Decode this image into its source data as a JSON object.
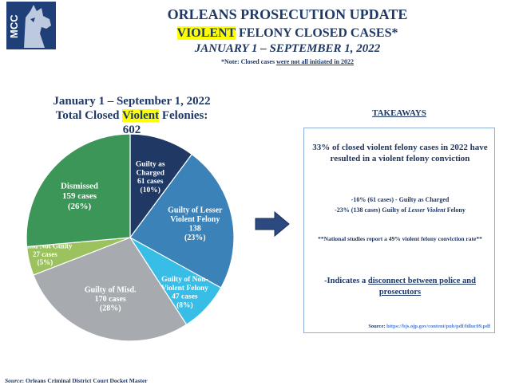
{
  "logo": {
    "text": "MCC"
  },
  "header": {
    "title": "ORLEANS PROSECUTION UPDATE",
    "subtitle_highlight": "VIOLENT",
    "subtitle_rest": " FELONY CLOSED CASES*",
    "daterange": "JANUARY 1 – SEPTEMBER 1, 2022",
    "note_prefix": "*Note: Closed cases ",
    "note_underlined": "were not all initiated in 2022"
  },
  "chart_heading": {
    "line1": "January 1 – September 1, 2022",
    "line2_pre": "Total Closed ",
    "line2_highlight": "Violent",
    "line2_post": " Felonies:",
    "total": "602"
  },
  "chart_data": {
    "type": "pie",
    "total": 602,
    "slices": [
      {
        "label": "Guilty as Charged",
        "cases": 61,
        "percent": "10%",
        "color": "#1f3864",
        "lines": [
          "Guilty as",
          "Charged",
          "61 cases",
          "(10%)"
        ]
      },
      {
        "label": "Guilty of Lesser Violent Felony",
        "cases": 138,
        "percent": "23%",
        "color": "#3b82b8",
        "lines": [
          "Guilty of Lesser",
          "Violent Felony",
          "138",
          "(23%)"
        ]
      },
      {
        "label": "Guilty of Non-Violent Felony",
        "cases": 47,
        "percent": "8%",
        "color": "#38bde6",
        "lines": [
          "Guilty of Non-",
          "Violent Felony",
          "47 cases",
          "(8%)"
        ]
      },
      {
        "label": "Guilty of Misd.",
        "cases": 170,
        "percent": "28%",
        "color": "#a7abb0",
        "lines": [
          "Guilty of Misd.",
          "170 cases",
          "(28%)"
        ]
      },
      {
        "label": "Found Not Guilty",
        "cases": 27,
        "percent": "5%",
        "color": "#9bc25f",
        "lines": [
          "Found Not Guilty",
          "27 cases",
          "(5%)"
        ]
      },
      {
        "label": "Dismissed",
        "cases": 159,
        "percent": "26%",
        "color": "#3c9658",
        "lines": [
          "Dismissed",
          "159 cases",
          "(26%)"
        ]
      }
    ]
  },
  "takeaways": {
    "heading": "TAKEAWAYS",
    "point1": "33% of closed violent felony cases in 2022 have resulted in a violent felony conviction",
    "point2_line1": "-10% (61 cases) - Guilty as Charged",
    "point2_line2_pre": "-23% (138 cases) Guilty of ",
    "point2_line2_em": "Lesser Violent",
    "point2_line2_post": " Felony",
    "point3": "**National studies report a 49% violent felony conviction rate**",
    "point4_pre": "-Indicates a ",
    "point4_underlined": "disconnect between police and prosecutors",
    "source_label": "Source",
    "source_link": "https://bjs.ojp.gov/content/pub/pdf/fdluc09.pdf"
  },
  "footer": {
    "source_label": "Source",
    "source_text": ": Orleans Criminal District Court Docket Master"
  },
  "colors": {
    "navy": "#1f3864",
    "accent_blue": "#4a7bd0",
    "highlight": "#ffff00",
    "arrow": "#2c4a80"
  }
}
